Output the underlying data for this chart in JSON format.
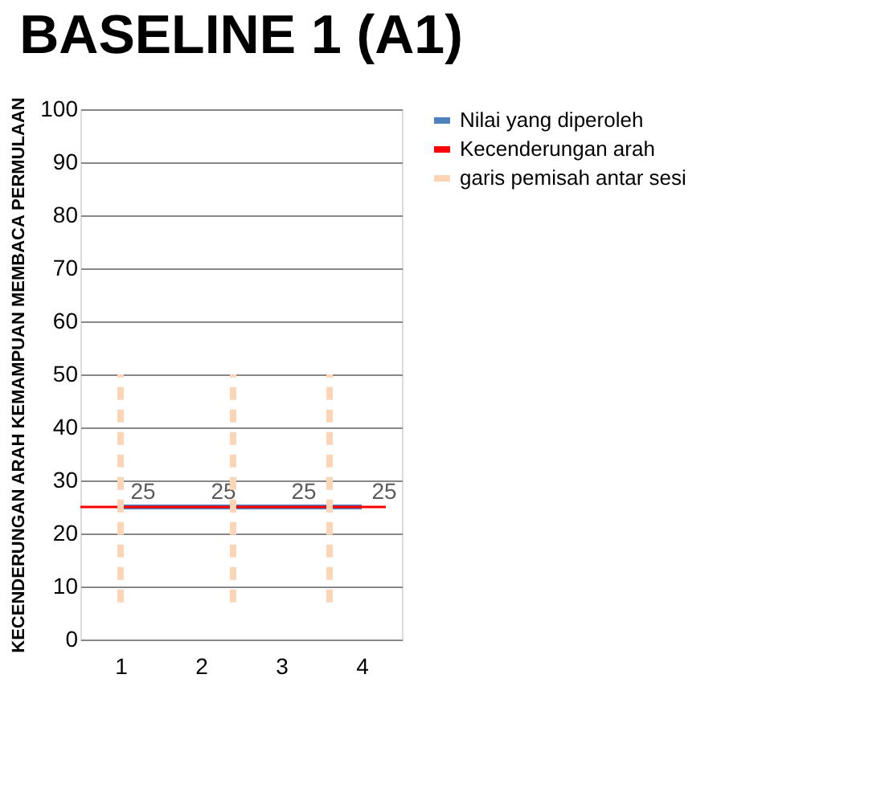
{
  "chart_data": {
    "type": "line",
    "title": "BASELINE 1 (A1)",
    "ylabel": "KECENDERUNGAN ARAH KEMAMPUAN MEMBACA PERMULAAN",
    "x": [
      1,
      2,
      3,
      4
    ],
    "xlim": [
      0.5,
      4.5
    ],
    "xticks": [
      1,
      2,
      3,
      4
    ],
    "ylim": [
      0,
      100
    ],
    "yticks": [
      0,
      10,
      20,
      30,
      40,
      50,
      60,
      70,
      80,
      90,
      100
    ],
    "grid": "y",
    "legend": "right",
    "marker": "none",
    "series": [
      {
        "name": "Nilai yang diperoleh",
        "color": "#4f81bd",
        "values": [
          25,
          25,
          25,
          25
        ],
        "data_labels": true
      },
      {
        "name": "Kecenderungan arah",
        "color": "#ff0000",
        "x": [
          0.5,
          4.3
        ],
        "values": [
          25,
          25
        ]
      },
      {
        "name": "garis pemisah antar sesi",
        "color": "#fbd5b5",
        "line_style": "dashed",
        "x": [
          1,
          1,
          1.7,
          2.4,
          2.4,
          3,
          3.6,
          3.6
        ],
        "values": [
          7,
          50,
          null,
          7,
          50,
          null,
          7,
          50
        ]
      }
    ]
  }
}
